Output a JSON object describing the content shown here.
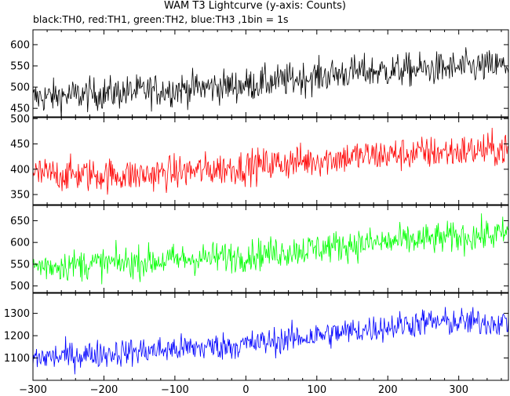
{
  "title": "WAM T3 Lightcurve (y-axis: Counts)",
  "subtitle": "black:TH0, red:TH1, green:TH2, blue:TH3 ,1bin = 1s",
  "chart_data": {
    "type": "line",
    "x_range": [
      -300,
      370
    ],
    "x_ticks": [
      -300,
      -200,
      -100,
      0,
      100,
      200,
      300
    ],
    "x_tick_labels": [
      "−300",
      "−200",
      "−100",
      "0",
      "100",
      "200",
      "300"
    ],
    "grid": false,
    "panels": [
      {
        "series": "TH0",
        "color": "#000000",
        "ylim": [
          430,
          635
        ],
        "y_ticks": [
          450,
          500,
          550,
          600
        ],
        "trend": {
          "x": [
            -300,
            -150,
            0,
            150,
            370
          ],
          "y": [
            475,
            490,
            505,
            535,
            550
          ]
        },
        "noise_amplitude": 28
      },
      {
        "series": "TH1",
        "color": "#ff0000",
        "ylim": [
          330,
          502
        ],
        "y_ticks": [
          350,
          400,
          450,
          500
        ],
        "trend": {
          "x": [
            -300,
            -150,
            0,
            150,
            370
          ],
          "y": [
            390,
            388,
            405,
            425,
            440
          ]
        },
        "noise_amplitude": 24
      },
      {
        "series": "TH2",
        "color": "#00ff00",
        "ylim": [
          485,
          685
        ],
        "y_ticks": [
          500,
          550,
          600,
          650
        ],
        "trend": {
          "x": [
            -300,
            -150,
            0,
            150,
            370
          ],
          "y": [
            545,
            555,
            570,
            595,
            620
          ]
        },
        "noise_amplitude": 26
      },
      {
        "series": "TH3",
        "color": "#0000ff",
        "ylim": [
          1000,
          1390
        ],
        "y_ticks": [
          1100,
          1200,
          1300
        ],
        "trend": {
          "x": [
            -300,
            -150,
            0,
            150,
            250,
            370
          ],
          "y": [
            1100,
            1130,
            1160,
            1220,
            1260,
            1260
          ]
        },
        "noise_amplitude": 45
      }
    ]
  }
}
